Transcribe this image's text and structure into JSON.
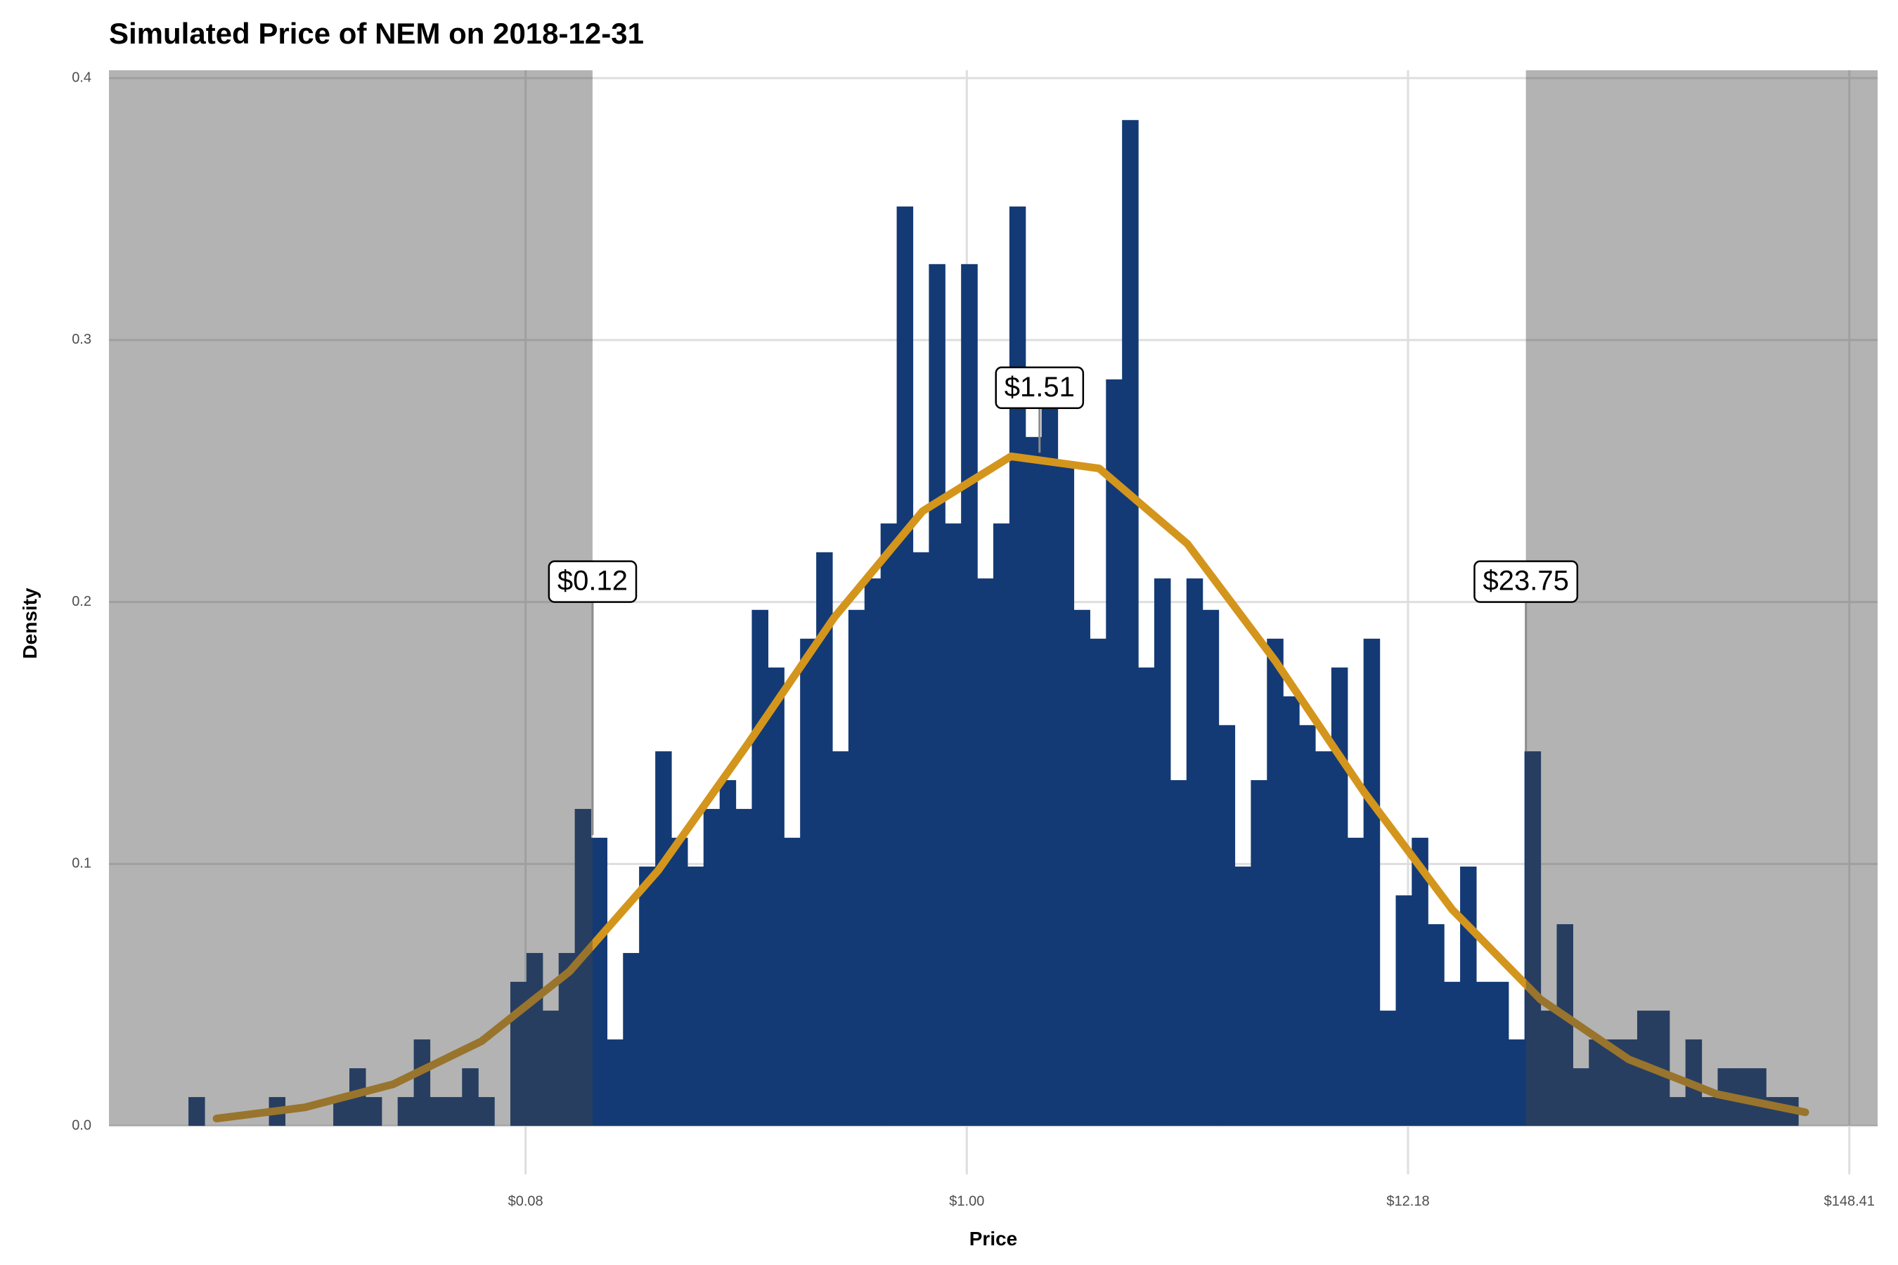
{
  "chart_data": {
    "type": "histogram",
    "title": "Simulated Price of NEM on 2018-12-31",
    "xlabel": "Price",
    "ylabel": "Density",
    "xscale": "log",
    "grid": true,
    "color": "#133a75",
    "shade_color": "#444444",
    "xlim": [
      0.00775,
      174.2
    ],
    "xticks": [
      {
        "value": 0.0821,
        "label": "$0.08"
      },
      {
        "value": 1,
        "label": "$1.00"
      },
      {
        "value": 12.18,
        "label": "$12.18"
      },
      {
        "value": 148.41,
        "label": "$148.41"
      }
    ],
    "ylim": [
      -0.0185,
      0.403
    ],
    "yticks": [
      {
        "value": 0,
        "label": "0.0"
      },
      0.1,
      0.2,
      0.3,
      0.4
    ],
    "bins": [
      0.01216,
      0.01332,
      0.01459,
      0.01598,
      0.01751,
      0.01918,
      0.02101,
      0.02302,
      0.02521,
      0.02762,
      0.03026,
      0.03315,
      0.03631,
      0.03978,
      0.04358,
      0.04774,
      0.0523,
      0.05729,
      0.06276,
      0.06876,
      0.07532,
      0.08251,
      0.09039,
      0.09903,
      0.1085,
      0.1188,
      0.1302,
      0.1426,
      0.1562,
      0.1712,
      0.1875,
      0.2054,
      0.225,
      0.2465,
      0.27,
      0.2958,
      0.3241,
      0.355,
      0.3889,
      0.4261,
      0.4667,
      0.5113,
      0.5601,
      0.6136,
      0.6722,
      0.7364,
      0.8067,
      0.8837,
      0.9681,
      1.061,
      1.162,
      1.273,
      1.394,
      1.527,
      1.673,
      1.833,
      2.008,
      2.2,
      2.41,
      2.64,
      2.892,
      3.168,
      3.471,
      3.802,
      4.165,
      4.563,
      4.999,
      5.476,
      5.999,
      6.572,
      7.199,
      7.887,
      8.64,
      9.465,
      10.37,
      11.36,
      12.44,
      13.63,
      14.93,
      16.36,
      17.92,
      19.63,
      21.51,
      23.56,
      25.81,
      28.28,
      30.98,
      33.93,
      37.17,
      40.72,
      44.61,
      48.87,
      53.54,
      58.65,
      64.25,
      70.39,
      77.11,
      84.47,
      92.54,
      101.4,
      111.1
    ],
    "values": [
      0.011,
      0,
      0,
      0,
      0,
      0.011,
      0,
      0,
      0,
      0.011,
      0.022,
      0.011,
      0,
      0.011,
      0.033,
      0.011,
      0.011,
      0.022,
      0.011,
      0,
      0.055,
      0.066,
      0.044,
      0.066,
      0.121,
      0.11,
      0.033,
      0.066,
      0.099,
      0.143,
      0.11,
      0.099,
      0.121,
      0.132,
      0.121,
      0.197,
      0.175,
      0.11,
      0.186,
      0.219,
      0.143,
      0.197,
      0.209,
      0.23,
      0.351,
      0.219,
      0.329,
      0.23,
      0.329,
      0.209,
      0.23,
      0.351,
      0.263,
      0.274,
      0.252,
      0.197,
      0.186,
      0.285,
      0.384,
      0.175,
      0.209,
      0.132,
      0.209,
      0.197,
      0.153,
      0.099,
      0.132,
      0.186,
      0.164,
      0.153,
      0.143,
      0.175,
      0.11,
      0.186,
      0.044,
      0.088,
      0.11,
      0.077,
      0.055,
      0.099,
      0.055,
      0.055,
      0.033,
      0.143,
      0.044,
      0.077,
      0.022,
      0.033,
      0.033,
      0.033,
      0.044,
      0.044,
      0.011,
      0.033,
      0.011,
      0.022,
      0.022,
      0.022,
      0.011,
      0.011
    ],
    "curve": {
      "type": "line",
      "color": "#d4951c",
      "x": [
        0.01426,
        0.02352,
        0.03877,
        0.06393,
        0.1054,
        0.1738,
        0.2865,
        0.4724,
        0.7788,
        1.284,
        2.117,
        3.49,
        5.755,
        9.488,
        15.64,
        25.79,
        42.52,
        70.11,
        115.6
      ],
      "values": [
        0.00282,
        0.00706,
        0.0159,
        0.0323,
        0.059,
        0.0974,
        0.1449,
        0.1942,
        0.2347,
        0.2556,
        0.251,
        0.2222,
        0.1773,
        0.1275,
        0.0826,
        0.0483,
        0.0254,
        0.0121,
        0.0052
      ]
    },
    "annotations": [
      {
        "label": "$0.12",
        "x": 0.12,
        "y": 0.2,
        "y_end": 0.111
      },
      {
        "label": "$1.51",
        "x": 1.51,
        "y": 0.274,
        "y_end": 0.257
      },
      {
        "label": "$23.75",
        "x": 23.75,
        "y": 0.2,
        "y_end": 0.143
      }
    ]
  }
}
